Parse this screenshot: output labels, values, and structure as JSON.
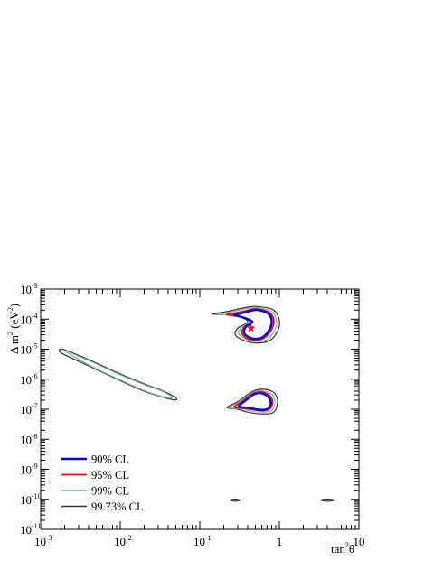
{
  "chart_data": {
    "type": "contour",
    "title": "",
    "xlabel": {
      "base": "tan",
      "sup": "2",
      "after": "θ"
    },
    "ylabel": {
      "base": "Δ m",
      "sup": "2",
      "after": " (eV",
      "sup2": "2",
      "close": ")"
    },
    "x_scale": "log",
    "y_scale": "log",
    "xlim": [
      0.001,
      10
    ],
    "ylim": [
      1e-11,
      0.001
    ],
    "x_ticks": [
      {
        "v": 0.001,
        "base": "10",
        "exp": "-3"
      },
      {
        "v": 0.01,
        "base": "10",
        "exp": "-2"
      },
      {
        "v": 0.1,
        "base": "10",
        "exp": "-1"
      },
      {
        "v": 1,
        "base": "1",
        "exp": ""
      },
      {
        "v": 10,
        "base": "10",
        "exp": ""
      }
    ],
    "y_ticks": [
      {
        "v": 1e-11,
        "base": "10",
        "exp": "-11"
      },
      {
        "v": 1e-10,
        "base": "10",
        "exp": "-10"
      },
      {
        "v": 1e-09,
        "base": "10",
        "exp": "-9"
      },
      {
        "v": 1e-08,
        "base": "10",
        "exp": "-8"
      },
      {
        "v": 1e-07,
        "base": "10",
        "exp": "-7"
      },
      {
        "v": 1e-06,
        "base": "10",
        "exp": "-6"
      },
      {
        "v": 1e-05,
        "base": "10",
        "exp": "-5"
      },
      {
        "v": 0.0001,
        "base": "10",
        "exp": "-4"
      },
      {
        "v": 0.001,
        "base": "10",
        "exp": "-3"
      }
    ],
    "legend_position": "bottom-left",
    "best_fit": {
      "x": 0.44,
      "y": 5e-05,
      "marker": "star",
      "color": "#ff0000"
    },
    "series": [
      {
        "name": "99.73% CL",
        "color": "#333333",
        "width": 1.2,
        "regions": [
          {
            "x": [
              0.145,
              0.22,
              0.4,
              0.55,
              0.85,
              1.0,
              0.95,
              0.75,
              0.5,
              0.35,
              0.28,
              0.3,
              0.4,
              0.32,
              0.2,
              0.145
            ],
            "y": [
              0.00015,
              0.00018,
              0.00025,
              0.00026,
              0.0002,
              9e-05,
              4e-05,
              1.9e-05,
              1.6e-05,
              2e-05,
              3e-05,
              5e-05,
              8e-05,
              0.00012,
              0.00014,
              0.00015
            ]
          },
          {
            "x": [
              0.22,
              0.3,
              0.5,
              0.8,
              0.95,
              0.85,
              0.6,
              0.4,
              0.3,
              0.22
            ],
            "y": [
              1.15e-07,
              1.8e-07,
              4.3e-07,
              4e-07,
              2e-07,
              8e-08,
              7e-08,
              8e-08,
              1e-07,
              1.15e-07
            ]
          },
          {
            "x": [
              0.0017,
              0.002,
              0.004,
              0.01,
              0.02,
              0.035,
              0.05,
              0.045,
              0.02,
              0.01,
              0.004,
              0.002,
              0.0017
            ],
            "y": [
              9e-06,
              9.5e-06,
              4.5e-06,
              1.5e-06,
              7e-07,
              4e-07,
              2.4e-07,
              2.1e-07,
              4e-07,
              9e-07,
              2.8e-06,
              6.5e-06,
              9e-06
            ]
          },
          {
            "x": [
              0.24,
              0.28,
              0.32,
              0.28,
              0.24
            ],
            "y": [
              9.4e-11,
              1.02e-10,
              9.4e-11,
              8.6e-11,
              9.4e-11
            ]
          },
          {
            "x": [
              3.3,
              4.0,
              4.9,
              4.0,
              3.3
            ],
            "y": [
              9.4e-11,
              1.02e-10,
              9.4e-11,
              8.6e-11,
              9.4e-11
            ]
          }
        ]
      },
      {
        "name": "99% CL",
        "color": "#7fb59b",
        "width": 1.2,
        "regions": [
          {
            "x": [
              0.17,
              0.25,
              0.42,
              0.55,
              0.8,
              0.92,
              0.88,
              0.7,
              0.5,
              0.37,
              0.31,
              0.33,
              0.42,
              0.34,
              0.22,
              0.17
            ],
            "y": [
              0.00015,
              0.000175,
              0.00023,
              0.000235,
              0.00018,
              9e-05,
              4.3e-05,
              2.1e-05,
              1.8e-05,
              2.2e-05,
              3.2e-05,
              5.2e-05,
              8e-05,
              0.000115,
              0.000138,
              0.00015
            ]
          },
          {
            "x": [
              0.24,
              0.32,
              0.5,
              0.75,
              0.88,
              0.8,
              0.6,
              0.42,
              0.32,
              0.24
            ],
            "y": [
              1.15e-07,
              1.8e-07,
              3.9e-07,
              3.6e-07,
              1.9e-07,
              9e-08,
              8e-08,
              9e-08,
              1.05e-07,
              1.15e-07
            ]
          },
          {
            "x": [
              0.0021,
              0.004,
              0.01,
              0.02,
              0.035,
              0.045,
              0.035,
              0.02,
              0.01,
              0.004,
              0.0021
            ],
            "y": [
              8.4e-06,
              4.2e-06,
              1.4e-06,
              6.6e-07,
              3.8e-07,
              2.4e-07,
              2.6e-07,
              4.2e-07,
              9.5e-07,
              3e-06,
              8.4e-06
            ]
          }
        ]
      },
      {
        "name": "95% CL",
        "color": "#ff0000",
        "width": 1.8,
        "regions": [
          {
            "x": [
              0.22,
              0.3,
              0.45,
              0.55,
              0.75,
              0.85,
              0.8,
              0.65,
              0.5,
              0.38,
              0.34,
              0.36,
              0.45,
              0.36,
              0.26,
              0.22
            ],
            "y": [
              0.000145,
              0.000165,
              0.00021,
              0.000215,
              0.000165,
              9e-05,
              4.6e-05,
              2.4e-05,
              2e-05,
              2.4e-05,
              3.4e-05,
              5.4e-05,
              8e-05,
              0.00011,
              0.000132,
              0.000145
            ]
          },
          {
            "x": [
              0.27,
              0.34,
              0.5,
              0.7,
              0.82,
              0.75,
              0.6,
              0.44,
              0.34,
              0.27
            ],
            "y": [
              1.2e-07,
              1.8e-07,
              3.6e-07,
              3.3e-07,
              1.85e-07,
              1e-07,
              9e-08,
              1e-07,
              1.1e-07,
              1.2e-07
            ]
          }
        ]
      },
      {
        "name": "90% CL",
        "color": "#0000dd",
        "width": 2.4,
        "regions": [
          {
            "x": [
              0.27,
              0.33,
              0.46,
              0.55,
              0.72,
              0.8,
              0.76,
              0.63,
              0.5,
              0.4,
              0.36,
              0.38,
              0.46,
              0.38,
              0.3,
              0.27
            ],
            "y": [
              0.00014,
              0.000155,
              0.000195,
              0.0002,
              0.000155,
              9e-05,
              4.8e-05,
              2.6e-05,
              2.2e-05,
              2.6e-05,
              3.6e-05,
              5.6e-05,
              8e-05,
              0.000105,
              0.000128,
              0.00014
            ]
          },
          {
            "x": [
              0.31,
              0.36,
              0.5,
              0.66,
              0.78,
              0.72,
              0.6,
              0.46,
              0.36,
              0.31
            ],
            "y": [
              1.25e-07,
              1.8e-07,
              3.3e-07,
              3.1e-07,
              1.8e-07,
              1.05e-07,
              9.5e-08,
              1.05e-07,
              1.15e-07,
              1.25e-07
            ]
          }
        ]
      }
    ],
    "legend": [
      {
        "label": "90% CL",
        "color": "#0000dd",
        "width": 2.4
      },
      {
        "label": "95% CL",
        "color": "#ff0000",
        "width": 1.8
      },
      {
        "label": "99% CL",
        "color": "#7fb59b",
        "width": 1.4
      },
      {
        "label": "99.73% CL",
        "color": "#333333",
        "width": 1.4
      }
    ]
  }
}
